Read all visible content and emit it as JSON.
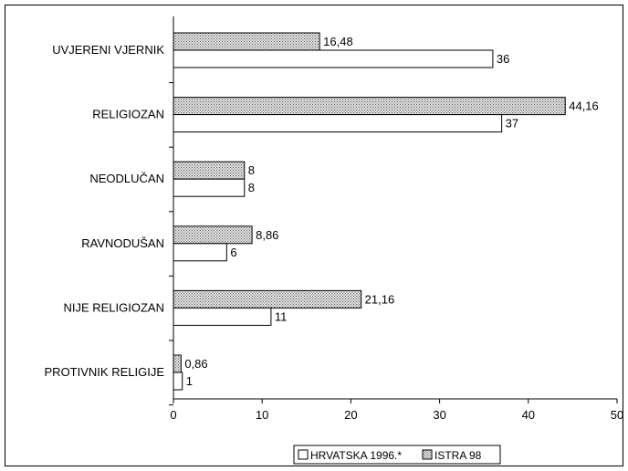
{
  "chart_data": {
    "type": "bar",
    "orientation": "horizontal",
    "categories": [
      "UVJERENI VJERNIK",
      "RELIGIOZAN",
      "NEODLUČAN",
      "RAVNODUŠAN",
      "NIJE RELIGIOZAN",
      "PROTIVNIK RELIGIJE"
    ],
    "series": [
      {
        "name": "ISTRA 98",
        "values": [
          16.48,
          44.16,
          8,
          8.86,
          21.16,
          0.86
        ],
        "labels": [
          "16,48",
          "44,16",
          "8",
          "8,86",
          "21,16",
          "0,86"
        ],
        "fill": "dotted-gray"
      },
      {
        "name": "HRVATSKA 1996.*",
        "values": [
          36,
          37,
          8,
          6,
          11,
          1
        ],
        "labels": [
          "36",
          "37",
          "8",
          "6",
          "11",
          "1"
        ],
        "fill": "#ffffff"
      }
    ],
    "xlim": [
      0,
      50
    ],
    "xticks": [
      "0",
      "10",
      "20",
      "30",
      "40",
      "50"
    ],
    "title": "",
    "xlabel": "",
    "ylabel": "",
    "grid": false,
    "legend": {
      "placement": "bottom-center",
      "items": [
        {
          "name": "HRVATSKA 1996.*",
          "fill": "#ffffff"
        },
        {
          "name": "ISTRA 98",
          "fill": "dotted-gray"
        }
      ]
    }
  }
}
